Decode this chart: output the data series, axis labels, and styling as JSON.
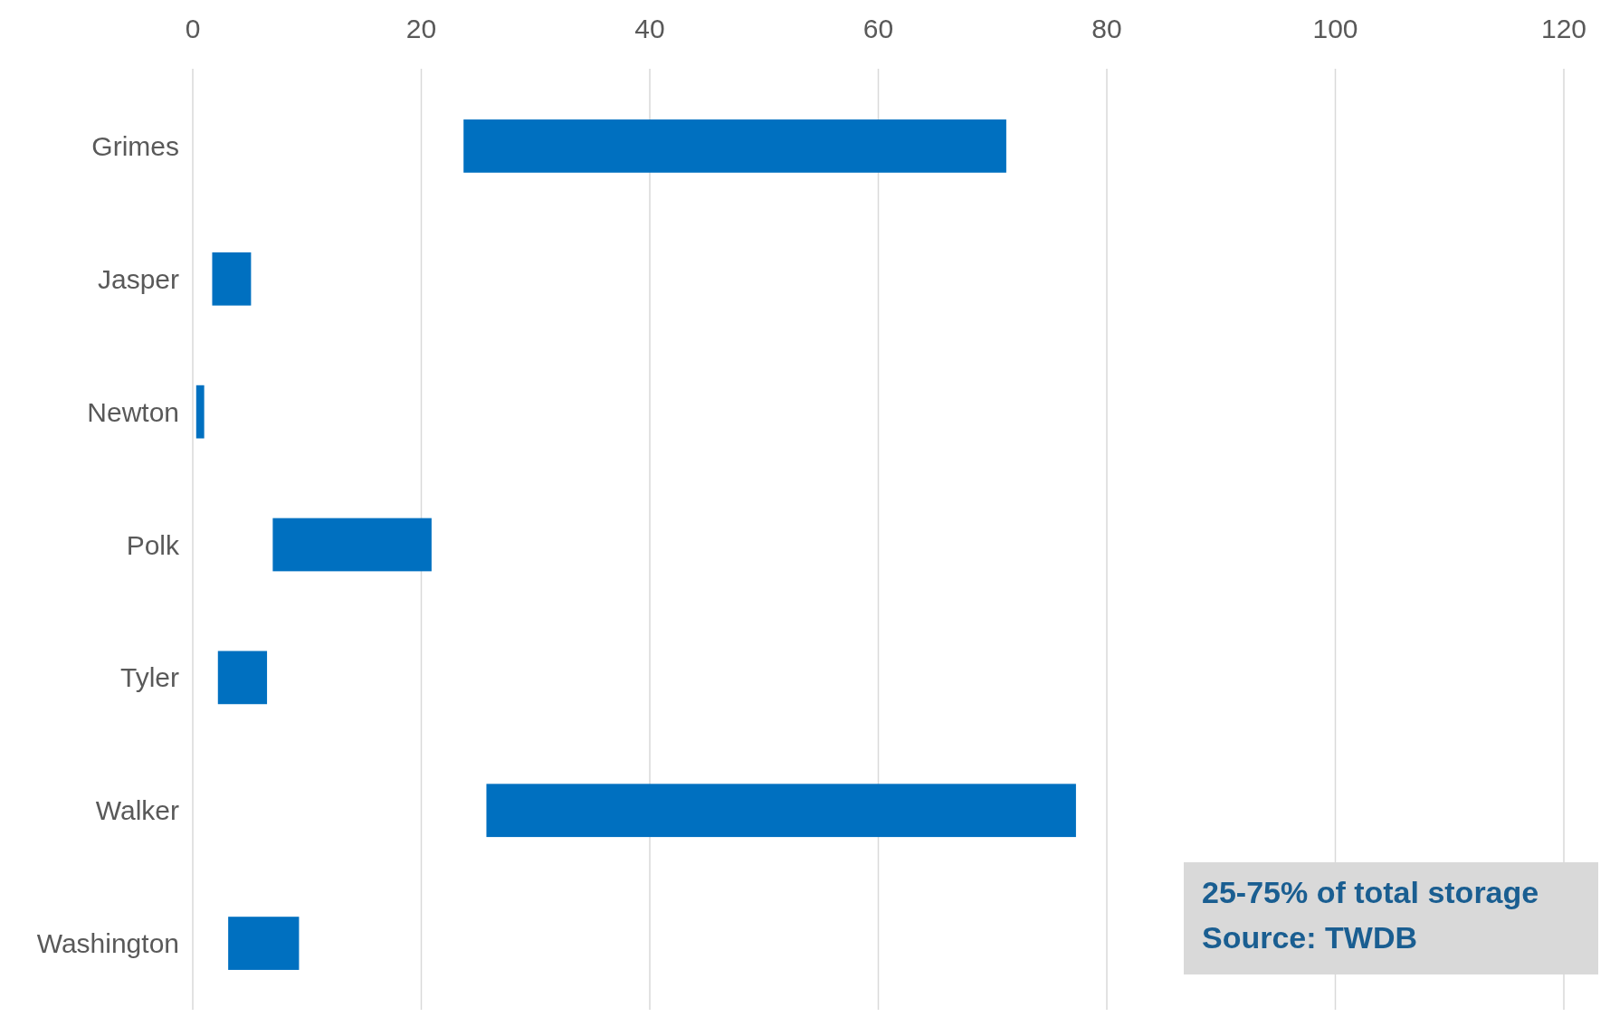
{
  "chart_data": {
    "type": "bar",
    "orientation": "horizontal",
    "categories": [
      "Grimes",
      "Jasper",
      "Newton",
      "Polk",
      "Tyler",
      "Walker",
      "Washington"
    ],
    "base": [
      23.7,
      1.7,
      0.3,
      7.0,
      2.2,
      25.7,
      3.1
    ],
    "values": [
      47.5,
      3.4,
      0.7,
      13.9,
      4.3,
      51.6,
      6.2
    ],
    "color": "#0070c0",
    "xlim": [
      0,
      120
    ],
    "xticks": [
      0,
      20,
      40,
      60,
      80,
      100,
      120
    ],
    "grid": "x",
    "annotations": [
      "25-75% of total storage",
      "Source: TWDB"
    ]
  }
}
